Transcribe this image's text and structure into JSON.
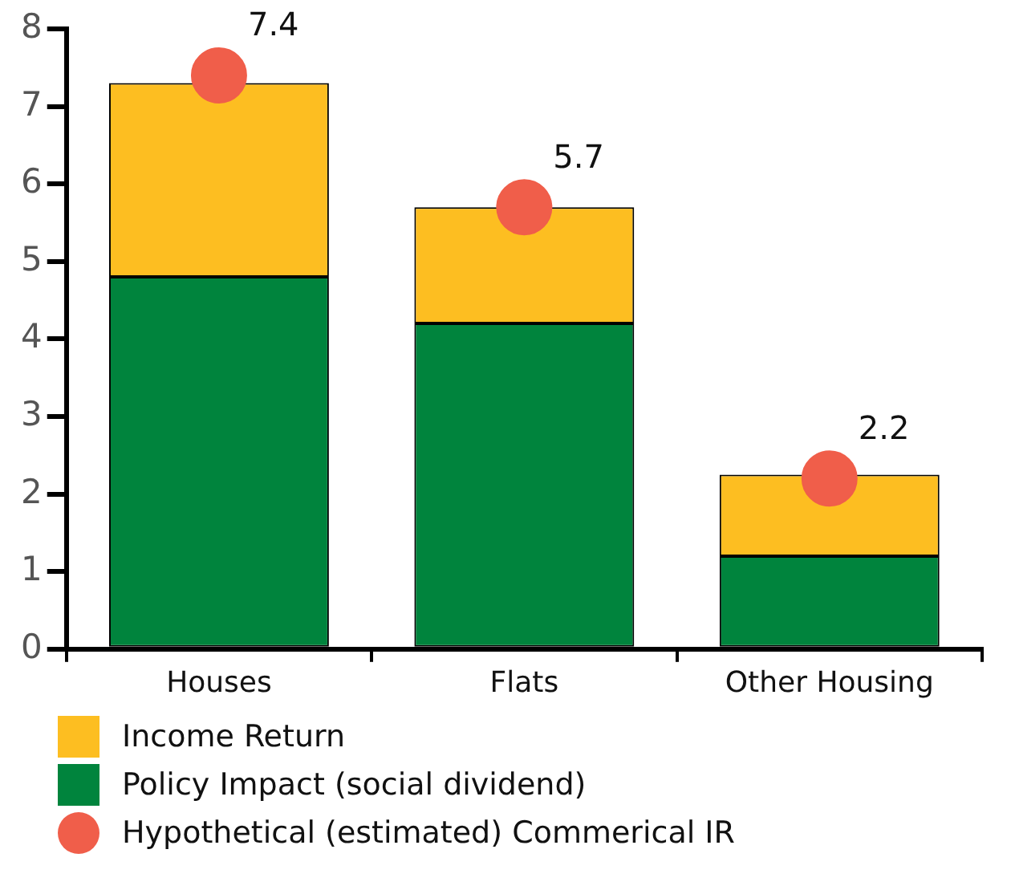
{
  "chart_data": {
    "type": "bar",
    "stacked": true,
    "categories": [
      "Houses",
      "Flats",
      "Other Housing"
    ],
    "series": [
      {
        "name": "Policy Impact (social dividend)",
        "color": "#00843d",
        "values": [
          4.8,
          4.2,
          1.2
        ]
      },
      {
        "name": "Income Return",
        "color": "#fdbe21",
        "values": [
          2.5,
          1.5,
          1.05
        ]
      },
      {
        "name": "Hypothetical (estimated) Commerical IR",
        "type": "scatter",
        "marker": "circle",
        "color": "#f05e4a",
        "x": [
          "Houses",
          "Flats",
          "Other Housing"
        ],
        "values": [
          7.4,
          5.7,
          2.2
        ],
        "value_labels": [
          "7.4",
          "5.7",
          "2.2"
        ]
      }
    ],
    "ylim": [
      0,
      8
    ],
    "yticks": [
      0,
      1,
      2,
      3,
      4,
      5,
      6,
      7,
      8
    ],
    "grid": false,
    "legend": "bottom left"
  }
}
